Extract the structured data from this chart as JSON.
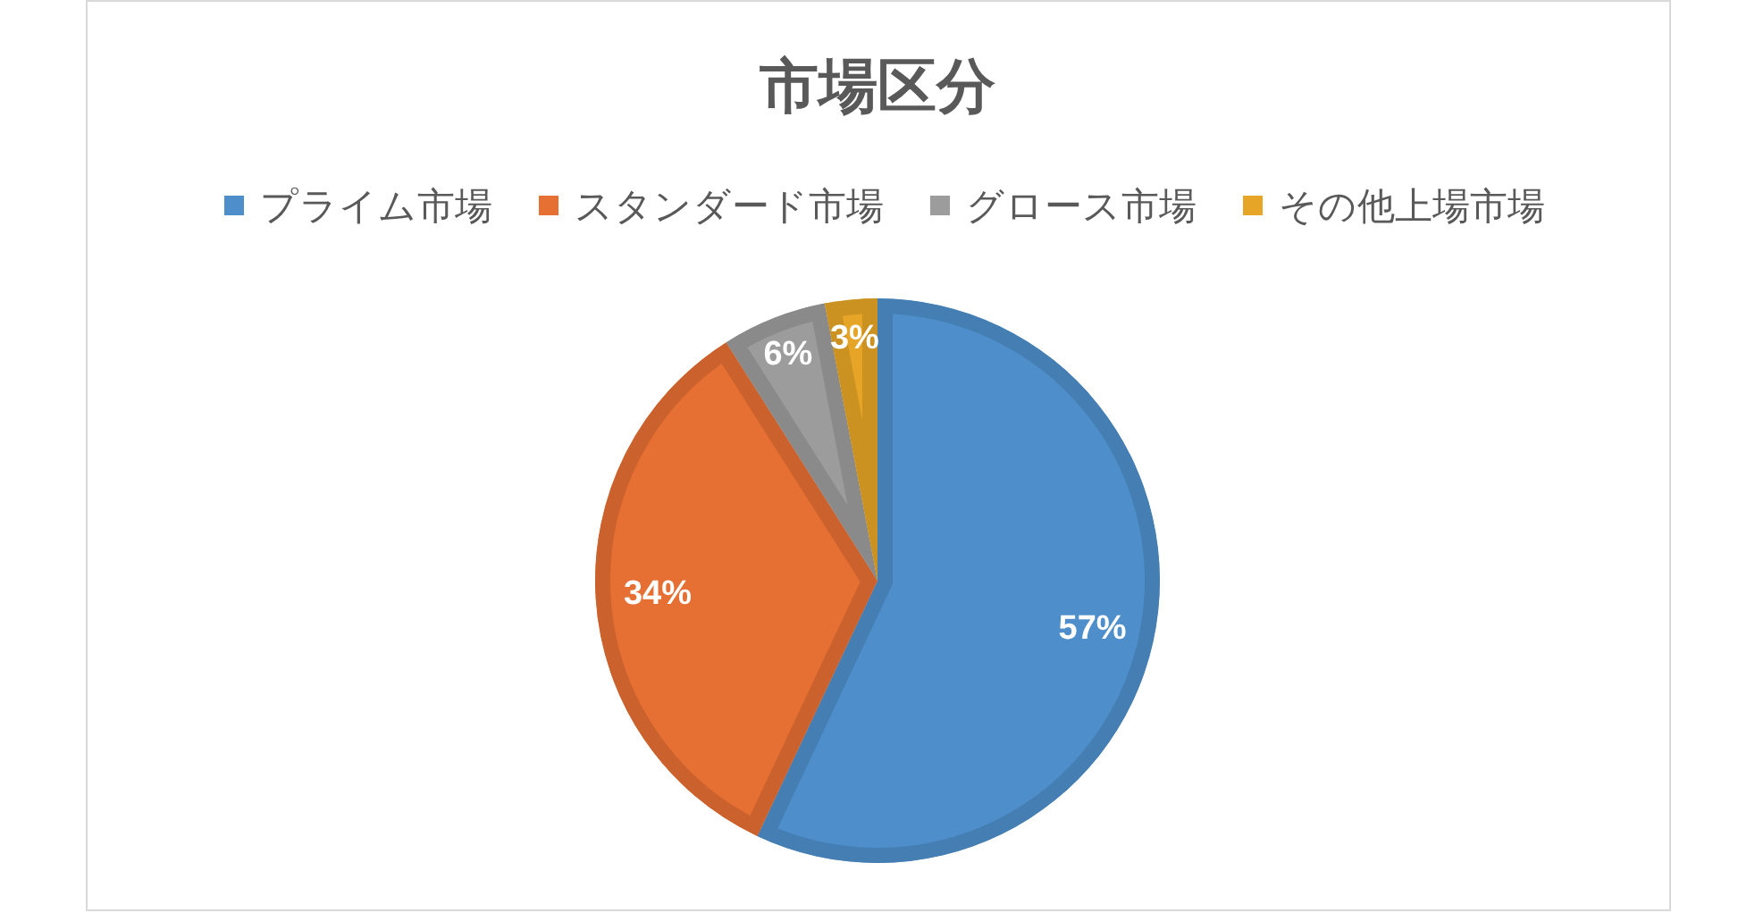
{
  "chart_data": {
    "type": "pie",
    "title": "市場区分",
    "categories": [
      "プライム市場",
      "スタンダード市場",
      "グロース市場",
      "その他上場市場"
    ],
    "values": [
      57,
      34,
      6,
      3
    ],
    "colors": [
      "#4e8fcb",
      "#e66f33",
      "#9c9c9c",
      "#e6a526"
    ],
    "value_labels": [
      "57%",
      "34%",
      "6%",
      "3%"
    ],
    "legend": "top"
  }
}
